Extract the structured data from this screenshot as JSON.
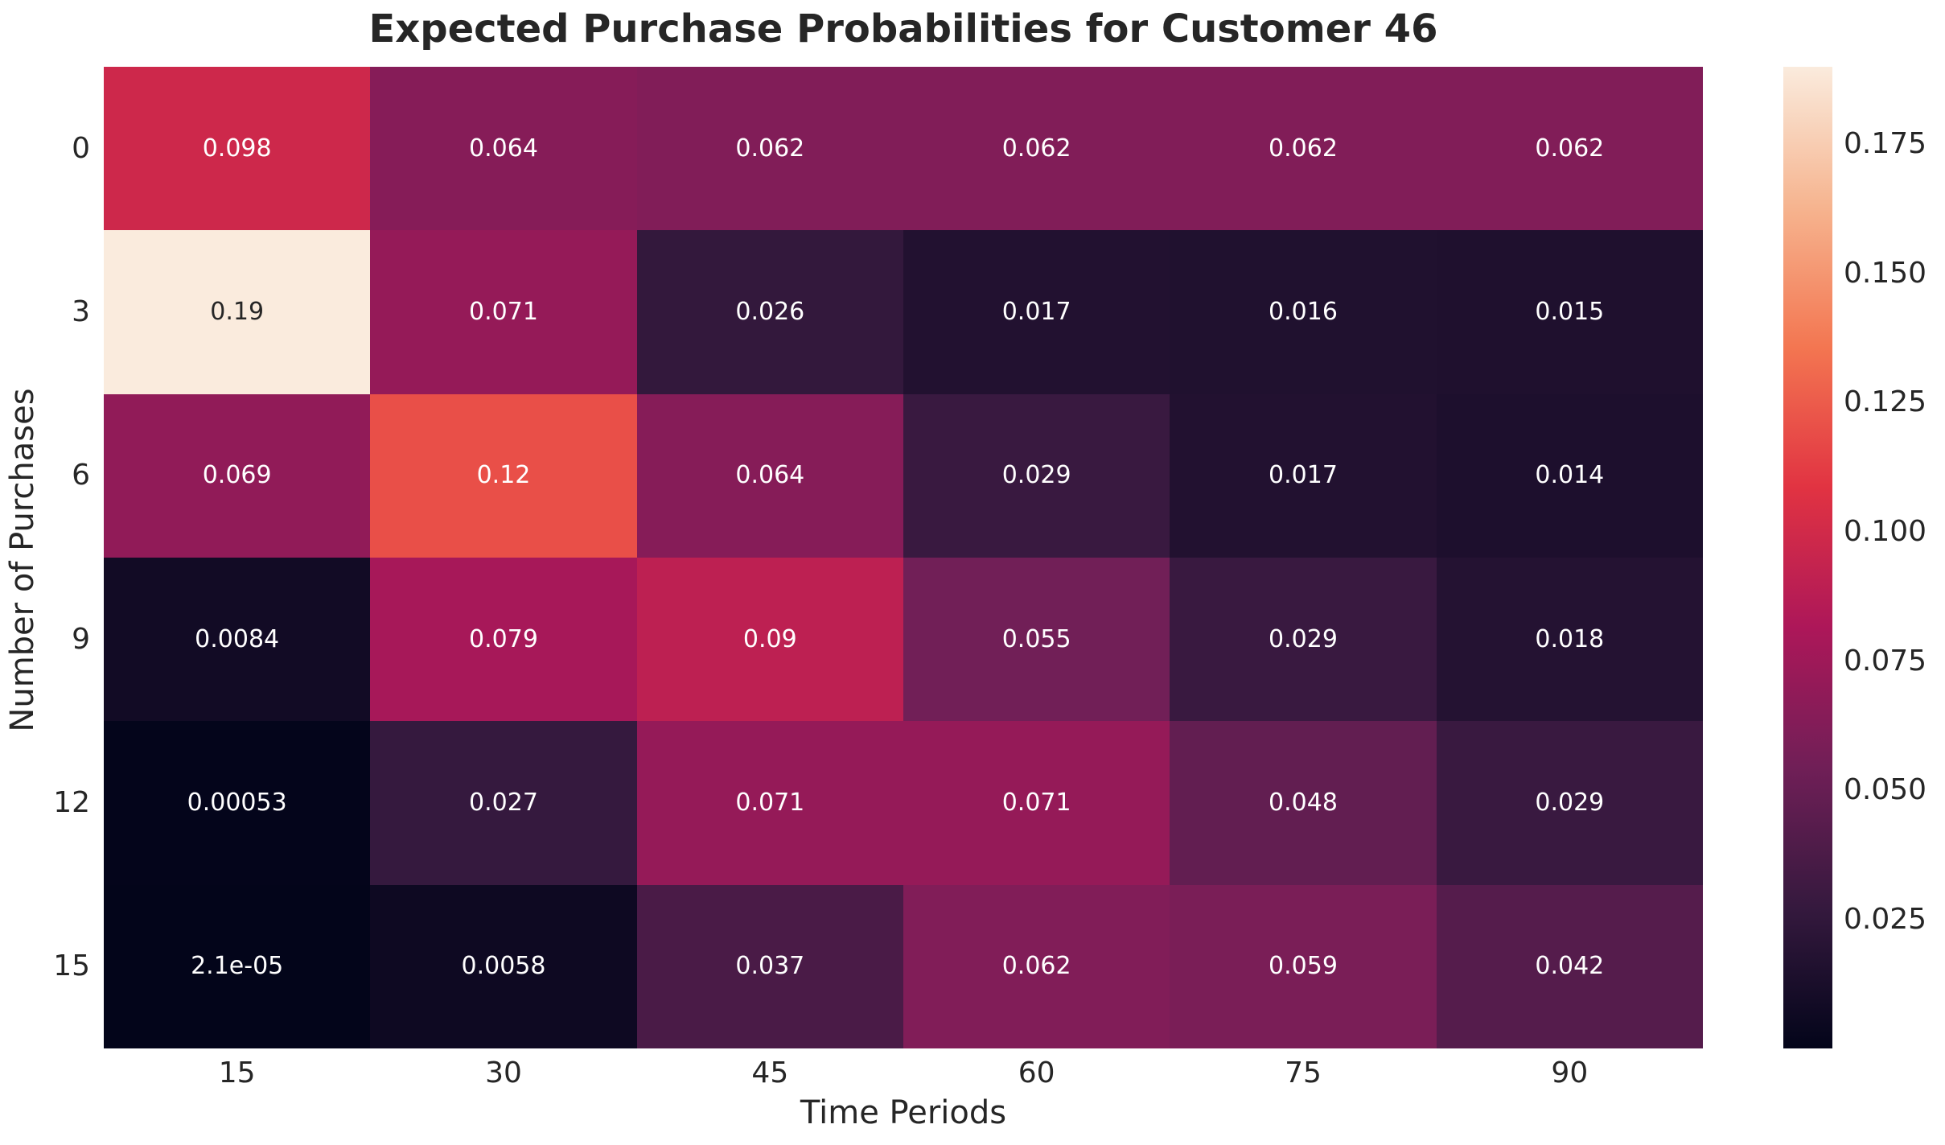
{
  "figure": {
    "background": "#ffffff",
    "text_color": "#262626"
  },
  "chart_data": {
    "type": "heatmap",
    "title": "Expected Purchase Probabilities for Customer 46",
    "xlabel": "Time Periods",
    "ylabel": "Number of Purchases",
    "x_categories": [
      "15",
      "30",
      "45",
      "60",
      "75",
      "90"
    ],
    "y_categories": [
      "0",
      "3",
      "6",
      "9",
      "12",
      "15"
    ],
    "values": [
      [
        0.098,
        0.064,
        0.062,
        0.062,
        0.062,
        0.062
      ],
      [
        0.19,
        0.071,
        0.026,
        0.017,
        0.016,
        0.015
      ],
      [
        0.069,
        0.12,
        0.064,
        0.029,
        0.017,
        0.014
      ],
      [
        0.0084,
        0.079,
        0.09,
        0.055,
        0.029,
        0.018
      ],
      [
        0.00053,
        0.027,
        0.071,
        0.071,
        0.048,
        0.029
      ],
      [
        2.1e-05,
        0.0058,
        0.037,
        0.062,
        0.059,
        0.042
      ]
    ],
    "cell_labels": [
      [
        "0.098",
        "0.064",
        "0.062",
        "0.062",
        "0.062",
        "0.062"
      ],
      [
        "0.19",
        "0.071",
        "0.026",
        "0.017",
        "0.016",
        "0.015"
      ],
      [
        "0.069",
        "0.12",
        "0.064",
        "0.029",
        "0.017",
        "0.014"
      ],
      [
        "0.0084",
        "0.079",
        "0.09",
        "0.055",
        "0.029",
        "0.018"
      ],
      [
        "0.00053",
        "0.027",
        "0.071",
        "0.071",
        "0.048",
        "0.029"
      ],
      [
        "2.1e-05",
        "0.0058",
        "0.037",
        "0.062",
        "0.059",
        "0.042"
      ]
    ],
    "vmin": 2.1e-05,
    "vmax": 0.19,
    "colormap": "rocket",
    "colormap_stops": [
      {
        "t": 0.0,
        "color": "#03051a"
      },
      {
        "t": 0.143,
        "color": "#35193e"
      },
      {
        "t": 0.286,
        "color": "#701f57"
      },
      {
        "t": 0.429,
        "color": "#ad1759"
      },
      {
        "t": 0.571,
        "color": "#e13342"
      },
      {
        "t": 0.714,
        "color": "#f37651"
      },
      {
        "t": 0.857,
        "color": "#f6b48f"
      },
      {
        "t": 1.0,
        "color": "#faebdd"
      }
    ],
    "colorbar_ticks": [
      {
        "value": 0.175,
        "label": "0.175"
      },
      {
        "value": 0.15,
        "label": "0.150"
      },
      {
        "value": 0.125,
        "label": "0.125"
      },
      {
        "value": 0.1,
        "label": "0.100"
      },
      {
        "value": 0.075,
        "label": "0.075"
      },
      {
        "value": 0.05,
        "label": "0.050"
      },
      {
        "value": 0.025,
        "label": "0.025"
      }
    ],
    "annotation_colors": {
      "light": "#ffffff",
      "dark": "#262626"
    },
    "legend_position": "right",
    "grid": false
  }
}
